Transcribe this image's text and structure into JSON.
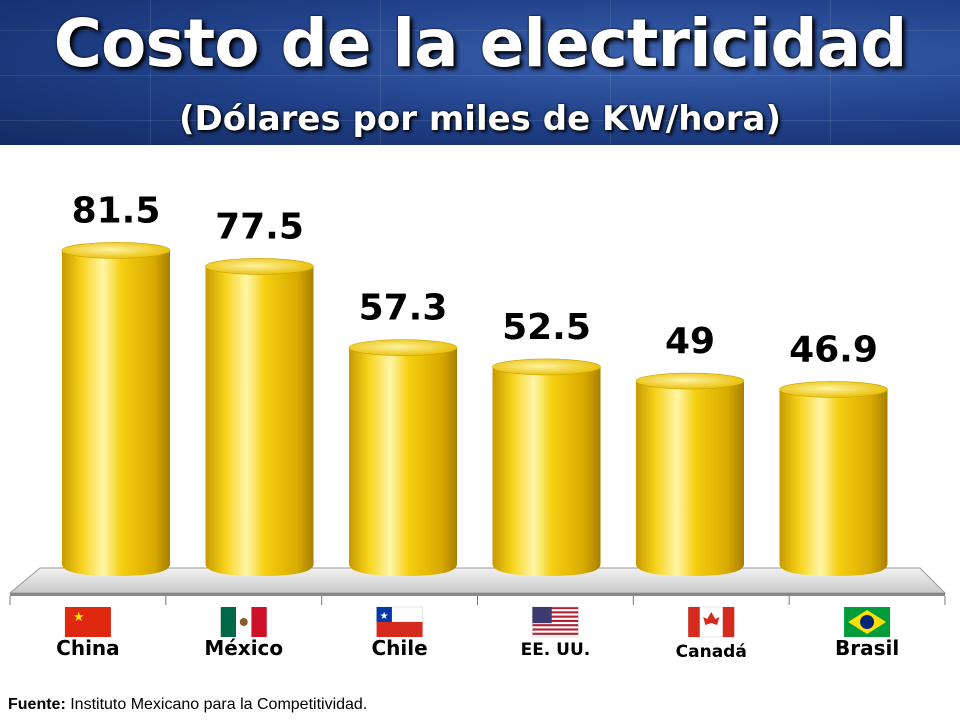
{
  "header": {
    "title": "Costo de la electricidad",
    "subtitle": "(Dólares por miles de KW/hora)"
  },
  "colors": {
    "header_bg": "#1f3f86",
    "bar_fill": "#f2c400",
    "bar_highlight": "#fff3a0",
    "bar_shadow": "#b08a00"
  },
  "chart_data": {
    "type": "bar",
    "title": "Costo de la electricidad",
    "subtitle": "(Dólares por miles de KW/hora)",
    "categories": [
      "China",
      "México",
      "Chile",
      "EE. UU.",
      "Canadá",
      "Brasil"
    ],
    "values": [
      81.5,
      77.5,
      57.3,
      52.5,
      49,
      46.9
    ],
    "value_labels": [
      "81.5",
      "77.5",
      "57.3",
      "52.5",
      "49",
      "46.9"
    ],
    "flags": [
      "china-flag",
      "mexico-flag",
      "chile-flag",
      "usa-flag",
      "canada-flag",
      "brazil-flag"
    ],
    "ylim": [
      0,
      100
    ],
    "grid": false,
    "legend": "none",
    "style": "3d-cylinder"
  },
  "source": {
    "label": "Fuente:",
    "text": " Instituto Mexicano para la Competitividad."
  }
}
